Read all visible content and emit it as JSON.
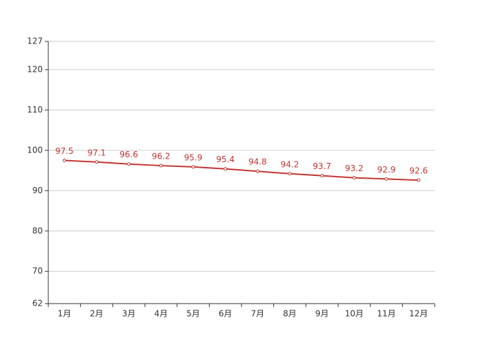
{
  "chart_data": {
    "type": "line",
    "categories": [
      "1月",
      "2月",
      "3月",
      "4月",
      "5月",
      "6月",
      "7月",
      "8月",
      "9月",
      "10月",
      "11月",
      "12月"
    ],
    "values": [
      97.5,
      97.1,
      96.6,
      96.2,
      95.9,
      95.4,
      94.8,
      94.2,
      93.7,
      93.2,
      92.9,
      92.6
    ],
    "color": "#c23531",
    "ylim": [
      62,
      127
    ],
    "yticks": [
      62,
      70,
      80,
      90,
      100,
      110,
      120,
      127
    ],
    "grid": true
  }
}
